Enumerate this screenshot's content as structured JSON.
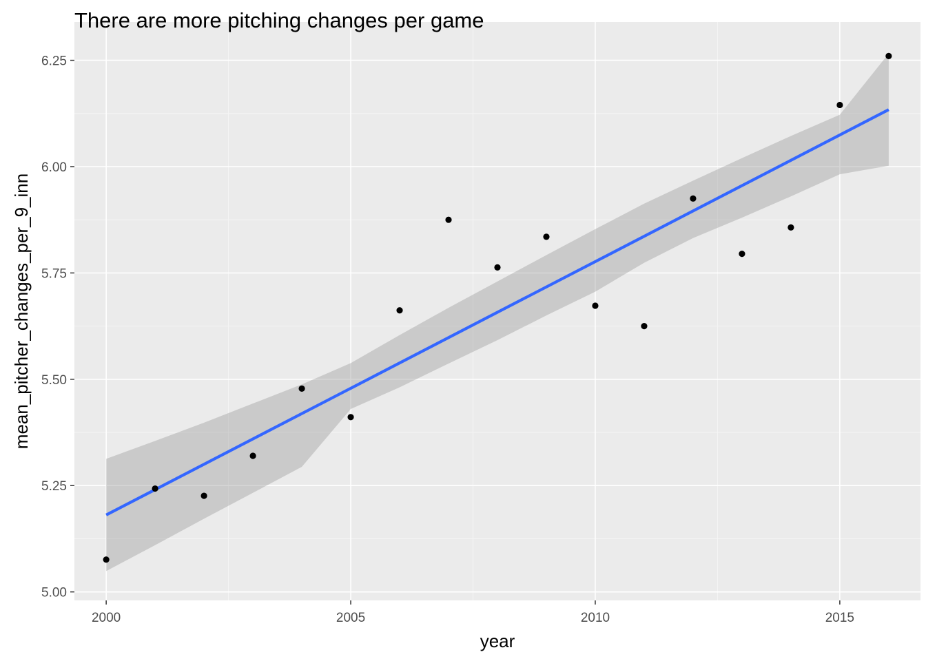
{
  "chart_data": {
    "type": "scatter",
    "title": "There are more pitching changes per game",
    "xlabel": "year",
    "ylabel": "mean_pitcher_changes_per_9_inn",
    "xlim": [
      1999.35,
      2016.65
    ],
    "ylim": [
      4.98,
      6.34
    ],
    "x_ticks": [
      2000,
      2005,
      2010,
      2015
    ],
    "x_tick_labels": [
      "2000",
      "2005",
      "2010",
      "2015"
    ],
    "y_ticks": [
      5.0,
      5.25,
      5.5,
      5.75,
      6.0,
      6.25
    ],
    "y_tick_labels": [
      "5.00",
      "5.25",
      "5.50",
      "5.75",
      "6.00",
      "6.25"
    ],
    "grid": true,
    "legend": "none",
    "series": [
      {
        "kind": "points",
        "x": [
          2000,
          2001,
          2002,
          2003,
          2004,
          2005,
          2006,
          2007,
          2008,
          2009,
          2010,
          2011,
          2012,
          2013,
          2014,
          2015,
          2016
        ],
        "y": [
          5.076,
          5.243,
          5.226,
          5.32,
          5.478,
          5.411,
          5.662,
          5.875,
          5.763,
          5.835,
          5.673,
          5.625,
          5.925,
          5.795,
          5.857,
          6.145,
          6.26
        ],
        "color": "#000000"
      },
      {
        "kind": "linear-fit",
        "x": [
          2000,
          2016
        ],
        "y": [
          5.181,
          6.134
        ],
        "color": "#3366ff"
      },
      {
        "kind": "confidence-band",
        "x": [
          2000,
          2001,
          2002,
          2003,
          2004,
          2005,
          2006,
          2007,
          2008,
          2009,
          2010,
          2011,
          2012,
          2013,
          2014,
          2015,
          2016
        ],
        "upper": [
          5.313,
          5.355,
          5.398,
          5.443,
          5.488,
          5.538,
          5.604,
          5.668,
          5.73,
          5.792,
          5.853,
          5.913,
          5.967,
          6.02,
          6.072,
          6.122,
          6.266
        ],
        "lower": [
          5.049,
          5.11,
          5.172,
          5.233,
          5.294,
          5.43,
          5.481,
          5.537,
          5.592,
          5.65,
          5.706,
          5.774,
          5.832,
          5.88,
          5.93,
          5.982,
          6.002
        ],
        "color": "#999999"
      }
    ],
    "colors": {
      "panel_background": "#ebebeb",
      "grid_major": "#ffffff",
      "grid_minor": "#f5f5f5",
      "point": "#000000",
      "fit_line": "#3366ff",
      "band_fill": "#999999"
    }
  }
}
